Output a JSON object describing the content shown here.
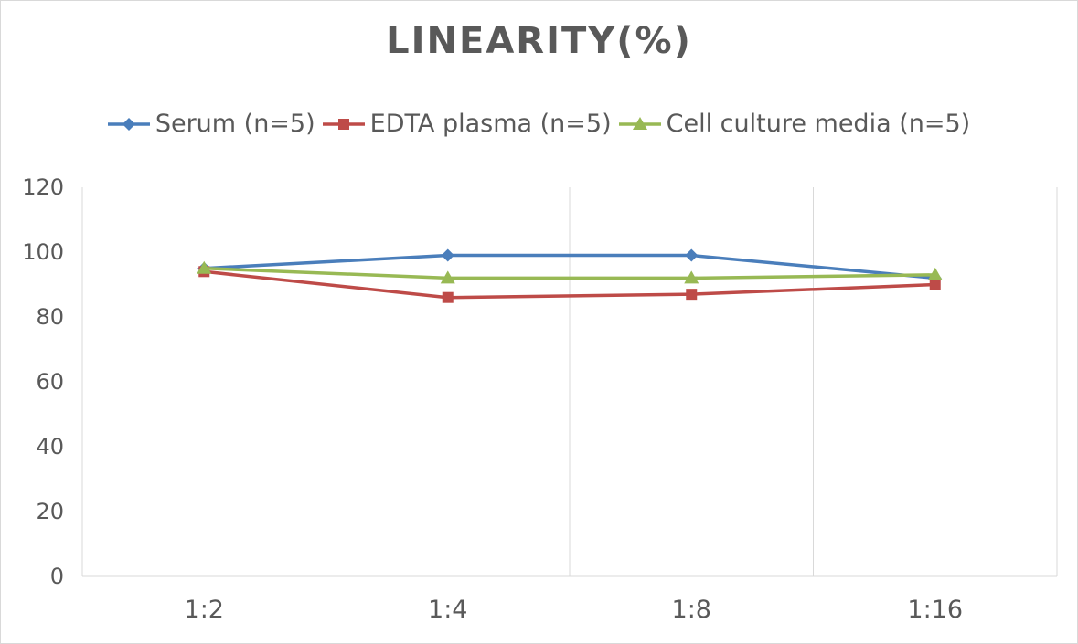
{
  "chart_data": {
    "type": "line",
    "title": "LINEARITY(%)",
    "xlabel": "",
    "ylabel": "",
    "categories": [
      "1:2",
      "1:4",
      "1:8",
      "1:16"
    ],
    "ylim": [
      0,
      120
    ],
    "yticks": [
      0,
      20,
      40,
      60,
      80,
      100,
      120
    ],
    "grid": "vertical",
    "legend_position": "top",
    "series": [
      {
        "name": "Serum (n=5)",
        "values": [
          95,
          99,
          99,
          92
        ],
        "color": "#4a7ebb",
        "marker": "diamond"
      },
      {
        "name": "EDTA plasma (n=5)",
        "values": [
          94,
          86,
          87,
          90
        ],
        "color": "#be4b48",
        "marker": "square"
      },
      {
        "name": "Cell culture media (n=5)",
        "values": [
          95,
          92,
          92,
          93
        ],
        "color": "#98b954",
        "marker": "triangle"
      }
    ]
  }
}
